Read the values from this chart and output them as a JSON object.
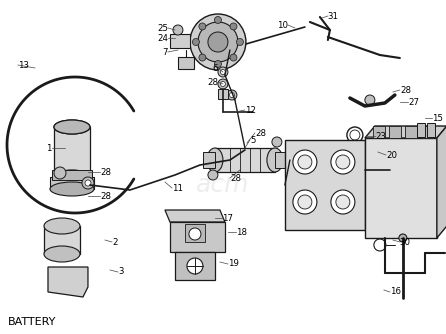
{
  "title": "BATTERY",
  "bg": "#ffffff",
  "lc": "#1a1a1a",
  "tc": "#000000",
  "figsize": [
    4.46,
    3.34
  ],
  "dpi": 100,
  "img_extent": [
    0,
    446,
    0,
    334
  ]
}
